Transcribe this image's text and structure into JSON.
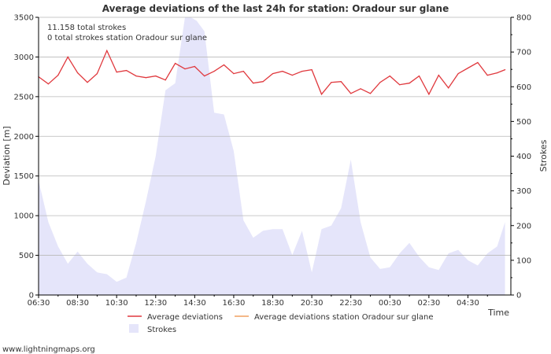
{
  "colors": {
    "deviation_line": "#e0393e",
    "station_line": "#f0a060",
    "strokes_fill": "#e5e5fa",
    "grid": "#b8b8b8",
    "axis": "#000000"
  },
  "info": {
    "total_strokes": "11.158 total strokes",
    "station_strokes": "0 total strokes station Oradour sur glane"
  },
  "legend": {
    "avg": "Average deviations",
    "avg_station": "Average deviations station Oradour sur glane",
    "strokes": "Strokes"
  },
  "watermark": "www.lightningmaps.org",
  "chart_data": {
    "type": "line",
    "title": "Average deviations of the last 24h for station: Oradour sur glane",
    "xlabel": "Time",
    "ylabel": "Deviation  [m]",
    "y2label": "Strokes",
    "ylim": [
      0,
      3500
    ],
    "y2lim": [
      0,
      800
    ],
    "yticks": [
      0,
      500,
      1000,
      1500,
      2000,
      2500,
      3000,
      3500
    ],
    "y2ticks": [
      0,
      100,
      200,
      300,
      400,
      500,
      600,
      700,
      800
    ],
    "xlim_hours": [
      6.5,
      30.7
    ],
    "xticks": [
      {
        "h": 6.5,
        "label": "06:30"
      },
      {
        "h": 8.5,
        "label": "08:30"
      },
      {
        "h": 10.5,
        "label": "10:30"
      },
      {
        "h": 12.5,
        "label": "12:30"
      },
      {
        "h": 14.5,
        "label": "14:30"
      },
      {
        "h": 16.5,
        "label": "16:30"
      },
      {
        "h": 18.5,
        "label": "18:30"
      },
      {
        "h": 20.5,
        "label": "20:30"
      },
      {
        "h": 22.5,
        "label": "22:30"
      },
      {
        "h": 24.5,
        "label": "00:30"
      },
      {
        "h": 26.5,
        "label": "02:30"
      },
      {
        "h": 28.5,
        "label": "04:30"
      }
    ],
    "series": [
      {
        "name": "Average deviations",
        "axis": "left",
        "x": [
          6.5,
          7.0,
          7.5,
          8.0,
          8.5,
          9.0,
          9.5,
          10.0,
          10.5,
          11.0,
          11.5,
          12.0,
          12.5,
          13.0,
          13.5,
          14.0,
          14.5,
          15.0,
          15.5,
          16.0,
          16.5,
          17.0,
          17.5,
          18.0,
          18.5,
          19.0,
          19.5,
          20.0,
          20.5,
          21.0,
          21.5,
          22.0,
          22.5,
          23.0,
          23.5,
          24.0,
          24.5,
          25.0,
          25.5,
          26.0,
          26.5,
          27.0,
          27.5,
          28.0,
          28.5,
          29.0,
          29.5,
          30.0,
          30.4
        ],
        "values": [
          2750,
          2660,
          2770,
          3000,
          2800,
          2680,
          2790,
          3080,
          2810,
          2830,
          2760,
          2740,
          2760,
          2710,
          2920,
          2850,
          2880,
          2760,
          2820,
          2900,
          2790,
          2820,
          2670,
          2690,
          2790,
          2820,
          2770,
          2820,
          2840,
          2530,
          2680,
          2690,
          2540,
          2600,
          2540,
          2680,
          2760,
          2650,
          2670,
          2760,
          2530,
          2770,
          2610,
          2790,
          2860,
          2930,
          2770,
          2800,
          2840
        ]
      },
      {
        "name": "Average deviations station Oradour sur glane",
        "axis": "left",
        "x": [],
        "values": []
      },
      {
        "name": "Strokes",
        "axis": "right",
        "type": "area",
        "x": [
          6.5,
          7.0,
          7.5,
          8.0,
          8.5,
          9.0,
          9.5,
          10.0,
          10.5,
          11.0,
          11.5,
          12.0,
          12.5,
          13.0,
          13.5,
          14.0,
          14.3,
          14.6,
          15.0,
          15.5,
          16.0,
          16.5,
          17.0,
          17.5,
          18.0,
          18.5,
          19.0,
          19.5,
          20.0,
          20.5,
          21.0,
          21.5,
          22.0,
          22.5,
          23.0,
          23.5,
          24.0,
          24.5,
          25.0,
          25.5,
          26.0,
          26.5,
          27.0,
          27.5,
          28.0,
          28.5,
          29.0,
          29.5,
          30.0,
          30.4
        ],
        "values": [
          330,
          210,
          140,
          90,
          125,
          90,
          65,
          60,
          38,
          50,
          150,
          270,
          400,
          590,
          610,
          800,
          800,
          790,
          760,
          525,
          520,
          415,
          215,
          165,
          185,
          190,
          190,
          115,
          185,
          65,
          190,
          200,
          250,
          390,
          210,
          108,
          75,
          80,
          120,
          150,
          110,
          80,
          72,
          120,
          130,
          100,
          85,
          120,
          140,
          210
        ]
      }
    ]
  }
}
